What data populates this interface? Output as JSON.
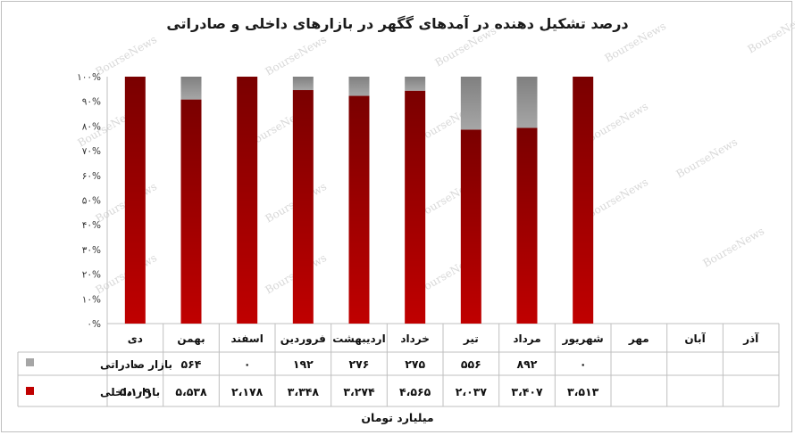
{
  "chart_data": {
    "type": "bar",
    "stacked": "percent",
    "title": "درصد تشکیل دهنده در آمدهای گگهر در بازارهای داخلی و صادراتی",
    "unit_label": "میلیارد تومان",
    "watermark": "BourseNews",
    "categories": [
      "آذر",
      "آبان",
      "مهر",
      "شهریور",
      "مرداد",
      "تیر",
      "خرداد",
      "اردیبهشت",
      "فروردین",
      "اسفند",
      "بهمن",
      "دی"
    ],
    "ylim": [
      0,
      100
    ],
    "y_ticks": [
      "۰%",
      "۱۰%",
      "۲۰%",
      "۳۰%",
      "۴۰%",
      "۵۰%",
      "۶۰%",
      "۷۰%",
      "۸۰%",
      "۹۰%",
      "۱۰۰%"
    ],
    "series": [
      {
        "name": "بازار داخلی",
        "color": "#c00000",
        "values": [
          null,
          null,
          null,
          3513,
          3407,
          2037,
          4565,
          3274,
          3348,
          2178,
          5538,
          5109
        ],
        "labels": [
          "",
          "",
          "",
          "۳،۵۱۳",
          "۳،۴۰۷",
          "۲،۰۳۷",
          "۴،۵۶۵",
          "۳،۲۷۴",
          "۳،۳۴۸",
          "۲،۱۷۸",
          "۵،۵۳۸",
          "۵،۱۰۹"
        ]
      },
      {
        "name": "بازار صادراتی",
        "color": "#a6a6a6",
        "values": [
          null,
          null,
          null,
          0,
          892,
          556,
          275,
          276,
          192,
          0,
          564,
          0
        ],
        "labels": [
          "",
          "",
          "",
          "۰",
          "۸۹۲",
          "۵۵۶",
          "۲۷۵",
          "۲۷۶",
          "۱۹۲",
          "۰",
          "۵۶۴",
          "۰"
        ]
      }
    ]
  }
}
